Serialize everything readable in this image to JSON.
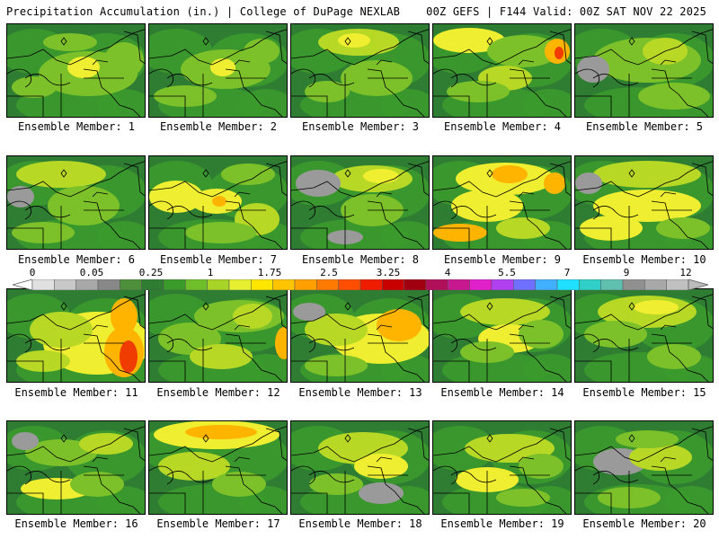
{
  "header": {
    "title_left": "Precipitation Accumulation (in.) | College of DuPage NEXLAB",
    "title_right": "00Z GEFS | F144 Valid: 00Z SAT NOV 22 2025"
  },
  "member_label_prefix": "Ensemble Member:",
  "members": [
    {
      "label": "Ensemble Member: 1",
      "variant": 1
    },
    {
      "label": "Ensemble Member: 2",
      "variant": 2
    },
    {
      "label": "Ensemble Member: 3",
      "variant": 3
    },
    {
      "label": "Ensemble Member: 4",
      "variant": 4
    },
    {
      "label": "Ensemble Member: 5",
      "variant": 5
    },
    {
      "label": "Ensemble Member: 6",
      "variant": 6
    },
    {
      "label": "Ensemble Member: 7",
      "variant": 7
    },
    {
      "label": "Ensemble Member: 8",
      "variant": 8
    },
    {
      "label": "Ensemble Member: 9",
      "variant": 9
    },
    {
      "label": "Ensemble Member: 10",
      "variant": 10
    },
    {
      "label": "Ensemble Member: 11",
      "variant": 11
    },
    {
      "label": "Ensemble Member: 12",
      "variant": 12
    },
    {
      "label": "Ensemble Member: 13",
      "variant": 13
    },
    {
      "label": "Ensemble Member: 14",
      "variant": 14
    },
    {
      "label": "Ensemble Member: 15",
      "variant": 15
    },
    {
      "label": "Ensemble Member: 16",
      "variant": 16
    },
    {
      "label": "Ensemble Member: 17",
      "variant": 17
    },
    {
      "label": "Ensemble Member: 18",
      "variant": 18
    },
    {
      "label": "Ensemble Member: 19",
      "variant": 19
    },
    {
      "label": "Ensemble Member: 20",
      "variant": 20
    }
  ],
  "colorbar": {
    "tick_labels": [
      "0",
      "0.05",
      "0.25",
      "1",
      "1.75",
      "2.5",
      "3.25",
      "4",
      "5.5",
      "7",
      "9",
      "12"
    ],
    "colors": [
      "#e0e0e0",
      "#c8c8c8",
      "#a8a8a8",
      "#888888",
      "#4d8f3a",
      "#2e7d32",
      "#3a9a2a",
      "#6fbf2a",
      "#a8d428",
      "#e6f030",
      "#ffe600",
      "#ffc400",
      "#ffa000",
      "#ff7a00",
      "#ff4e00",
      "#f01c00",
      "#c80000",
      "#a00010",
      "#b0105a",
      "#c81890",
      "#e020c8",
      "#b040f0",
      "#7070ff",
      "#40b0ff",
      "#20e0ff",
      "#30d0c8",
      "#60c0b0",
      "#909090",
      "#a8a8a8",
      "#c0c0c0"
    ]
  },
  "map_colors": {
    "dark_green": "#2e7d32",
    "green": "#3c9a2c",
    "light_green": "#7cc12a",
    "yellow_green": "#b8d826",
    "yellow": "#f0ee30",
    "orange": "#ffb400",
    "red": "#f03c00",
    "gray": "#9a9a9a"
  }
}
